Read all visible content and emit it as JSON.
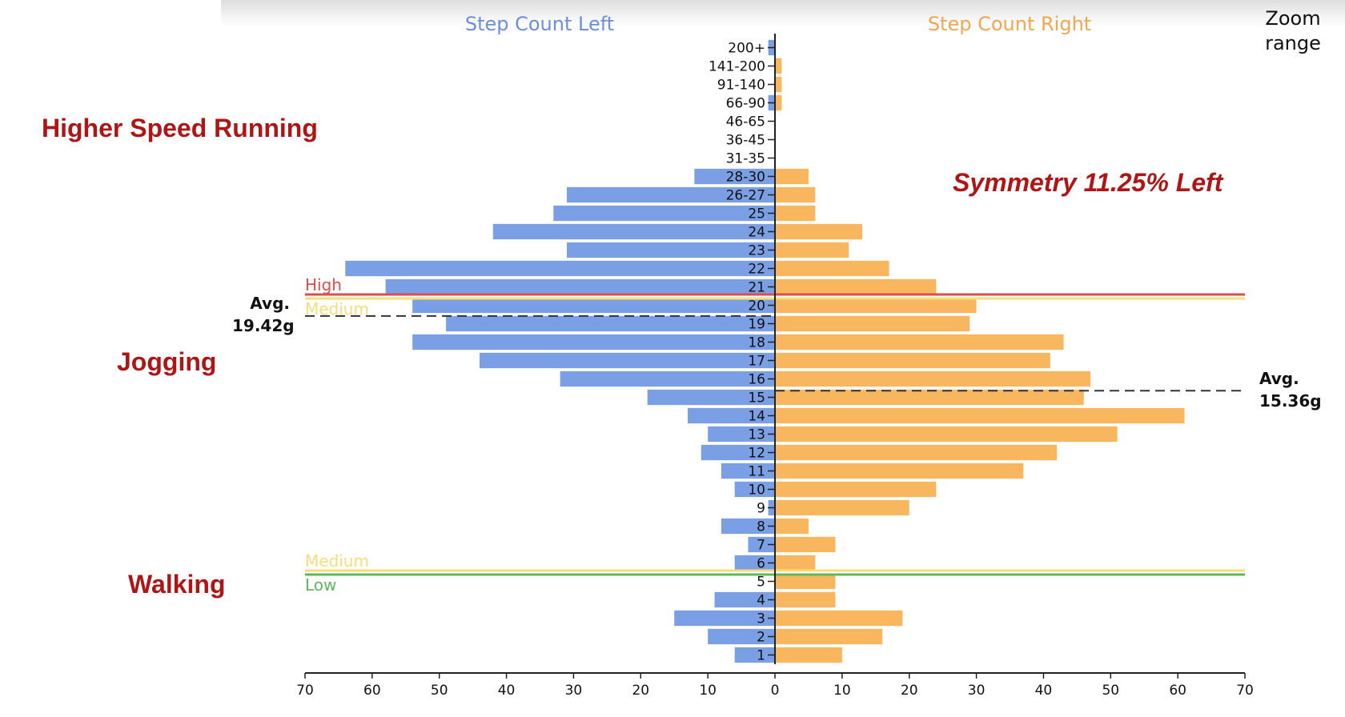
{
  "zoom_button": {
    "line1": "Zoom",
    "line2": "range"
  },
  "region_labels": {
    "higher_speed": "Higher Speed Running",
    "jogging": "Jogging",
    "walking": "Walking"
  },
  "symmetry_text": "Symmetry 11.25% Left",
  "averages": {
    "left": {
      "line1": "Avg.",
      "line2": "19.42g",
      "value": 19.42
    },
    "right": {
      "line1": "Avg.",
      "line2": "15.36g",
      "value": 15.36
    }
  },
  "chart_data": {
    "type": "bar",
    "orientation": "horizontal-butterfly",
    "categories": [
      "1",
      "2",
      "3",
      "4",
      "5",
      "6",
      "7",
      "8",
      "9",
      "10",
      "11",
      "12",
      "13",
      "14",
      "15",
      "16",
      "17",
      "18",
      "19",
      "20",
      "21",
      "22",
      "23",
      "24",
      "25",
      "26-27",
      "28-30",
      "31-35",
      "36-45",
      "46-65",
      "66-90",
      "91-140",
      "141-200",
      "200+"
    ],
    "series": [
      {
        "name": "Step Count Left",
        "side": "left",
        "color": "#7b9fe4",
        "values": [
          6,
          10,
          15,
          9,
          0,
          6,
          4,
          8,
          1,
          6,
          8,
          11,
          10,
          13,
          19,
          32,
          44,
          54,
          49,
          54,
          58,
          64,
          31,
          42,
          33,
          31,
          12,
          0,
          0,
          0,
          1,
          0,
          0,
          1
        ]
      },
      {
        "name": "Step Count Right",
        "side": "right",
        "color": "#f8b65e",
        "values": [
          10,
          16,
          19,
          9,
          9,
          6,
          9,
          5,
          20,
          24,
          37,
          42,
          51,
          61,
          46,
          47,
          41,
          43,
          29,
          30,
          24,
          17,
          11,
          13,
          6,
          6,
          5,
          0,
          0,
          0,
          1,
          1,
          1,
          0
        ]
      }
    ],
    "xlim": [
      0,
      70
    ],
    "xticks": [
      70,
      60,
      50,
      40,
      30,
      20,
      10,
      0,
      10,
      20,
      30,
      40,
      50,
      60,
      70
    ],
    "thresholds": [
      {
        "label": "High",
        "color": "#e04c4c",
        "between": [
          "20",
          "21"
        ]
      },
      {
        "label": "Medium",
        "color": "#f6dc7a",
        "between": [
          "20",
          "21"
        ]
      },
      {
        "label": "Medium",
        "color": "#f6dc7a",
        "between": [
          "5",
          "6"
        ]
      },
      {
        "label": "Low",
        "color": "#5cb85c",
        "between": [
          "5",
          "6"
        ]
      }
    ],
    "grid": false,
    "legend": "top"
  }
}
